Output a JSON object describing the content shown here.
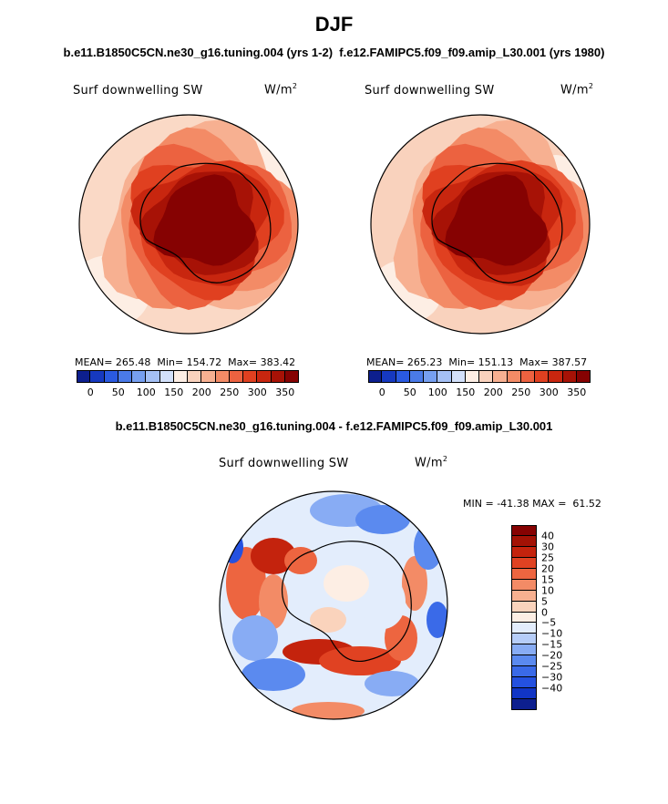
{
  "page": {
    "season": "DJF",
    "case_pair": "b.e11.B1850C5CN.ne30_g16.tuning.004 (yrs 1-2)  f.e12.FAMIPC5.f09_f09.amip_L30.001 (yrs 1980)",
    "diff_title": "b.e11.B1850C5CN.ne30_g16.tuning.004 - f.e12.FAMIPC5.f09_f09.amip_L30.001"
  },
  "colors": {
    "abs_scale": [
      "#0d1f8e",
      "#1639c0",
      "#2a5ae0",
      "#4a7ae8",
      "#769ff0",
      "#a4c0f5",
      "#d2e0fa",
      "#fdeee4",
      "#f9d2bd",
      "#f7b091",
      "#f38b66",
      "#ec6240",
      "#e04020",
      "#c8260f",
      "#a71206",
      "#860202"
    ],
    "diff_scale": [
      "#0d1f8e",
      "#1135c5",
      "#2451e0",
      "#3a6ae8",
      "#5b8aef",
      "#88acf4",
      "#b6cdf8",
      "#e3edfc",
      "#fdeee4",
      "#fad3bc",
      "#f7b090",
      "#f38b66",
      "#ed6540",
      "#e04222",
      "#c4230d",
      "#a31205",
      "#860202"
    ],
    "coast": "#000000"
  },
  "panels": [
    {
      "id": "model",
      "variable": "Surf downwelling SW",
      "units_base": "W/m",
      "units_exp": "2",
      "mean_label": "MEAN=",
      "mean": "265.48",
      "min_label": "Min=",
      "min": "154.72",
      "max_label": "Max=",
      "max": "383.42",
      "tick_labels": [
        "0",
        "50",
        "100",
        "150",
        "200",
        "250",
        "300",
        "350"
      ]
    },
    {
      "id": "obs",
      "variable": "Surf downwelling SW",
      "units_base": "W/m",
      "units_exp": "2",
      "mean_label": "MEAN=",
      "mean": "265.23",
      "min_label": "Min=",
      "min": "151.13",
      "max_label": "Max=",
      "max": "387.57",
      "tick_labels": [
        "0",
        "50",
        "100",
        "150",
        "200",
        "250",
        "300",
        "350"
      ]
    }
  ],
  "diff_panel": {
    "variable": "Surf downwelling SW",
    "units_base": "W/m",
    "units_exp": "2",
    "min_label": "MIN =",
    "min": "-41.38",
    "max_label": "MAX =",
    "max": "61.52",
    "tick_labels": [
      "40",
      "30",
      "25",
      "20",
      "15",
      "10",
      "5",
      "0",
      "−5",
      "−10",
      "−15",
      "−20",
      "−25",
      "−30",
      "−40"
    ]
  },
  "chart_data": [
    {
      "type": "heatmap",
      "projection": "south polar stereographic",
      "title": "Surf downwelling SW",
      "units": "W/m2",
      "mean": 265.48,
      "min": 154.72,
      "max": 383.42,
      "levels": [
        0,
        25,
        50,
        75,
        100,
        125,
        150,
        175,
        200,
        225,
        250,
        275,
        300,
        325,
        350
      ],
      "ring_values_outer_to_inner": [
        200,
        225,
        250,
        275,
        300,
        330,
        360
      ]
    },
    {
      "type": "heatmap",
      "projection": "south polar stereographic",
      "title": "Surf downwelling SW",
      "units": "W/m2",
      "mean": 265.23,
      "min": 151.13,
      "max": 387.57,
      "levels": [
        0,
        25,
        50,
        75,
        100,
        125,
        150,
        175,
        200,
        225,
        250,
        275,
        300,
        325,
        350
      ],
      "ring_values_outer_to_inner": [
        205,
        225,
        250,
        280,
        305,
        335,
        365
      ]
    },
    {
      "type": "heatmap",
      "projection": "south polar stereographic",
      "title": "Surf downwelling SW difference",
      "units": "W/m2",
      "min": -41.38,
      "max": 61.52,
      "levels": [
        -40,
        -30,
        -25,
        -20,
        -15,
        -10,
        -5,
        0,
        5,
        10,
        15,
        20,
        25,
        30,
        40
      ]
    }
  ]
}
